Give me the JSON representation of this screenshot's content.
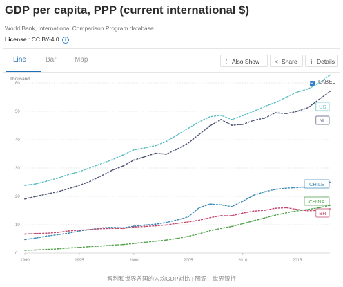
{
  "header": {
    "title": "GDP per capita, PPP (current international $)",
    "source": "World Bank, International Comparison Program database.",
    "license_label": "License",
    "license_sep": " : ",
    "license_value": "CC BY-4.0",
    "info_glyph": "i"
  },
  "tabs": [
    {
      "label": "Line",
      "active": true
    },
    {
      "label": "Bar",
      "active": false
    },
    {
      "label": "Map",
      "active": false
    }
  ],
  "toolbar": {
    "also_show": {
      "label": "Also Show",
      "icon": "kebab-icon",
      "glyph": "⋮"
    },
    "share": {
      "label": "Share",
      "icon": "share-icon",
      "glyph": "<"
    },
    "details": {
      "label": "Details",
      "icon": "info-icon",
      "glyph": "i"
    }
  },
  "label_toggle": {
    "label": "LABEL",
    "checked": true,
    "glyph": "✓"
  },
  "caption": "智利和世界各国的人均GDP对比 | 图源：世界银行",
  "chart_data": {
    "type": "line",
    "unit_label": "Thousand",
    "xlim": [
      1990,
      2018
    ],
    "ylim": [
      0,
      60
    ],
    "x_ticks": [
      1990,
      1995,
      2000,
      2005,
      2010,
      2015
    ],
    "y_ticks": [
      0,
      10,
      20,
      30,
      40,
      50,
      60
    ],
    "grid": "horizontal-dotted",
    "x": [
      1990,
      1991,
      1992,
      1993,
      1994,
      1995,
      1996,
      1997,
      1998,
      1999,
      2000,
      2001,
      2002,
      2003,
      2004,
      2005,
      2006,
      2007,
      2008,
      2009,
      2010,
      2011,
      2012,
      2013,
      2014,
      2015,
      2016,
      2017,
      2018
    ],
    "series": [
      {
        "name": "US",
        "color": "#58bdc2",
        "values": [
          23.9,
          24.4,
          25.4,
          26.4,
          27.7,
          28.7,
          30.1,
          31.5,
          32.9,
          34.6,
          36.4,
          37.1,
          37.9,
          39.4,
          41.7,
          44.0,
          46.3,
          48.1,
          48.6,
          47.1,
          48.5,
          50.0,
          51.7,
          53.1,
          55.0,
          56.8,
          57.9,
          59.9,
          62.8
        ]
      },
      {
        "name": "NL",
        "color": "#4a5275",
        "values": [
          19.1,
          20.0,
          20.8,
          21.6,
          22.7,
          23.9,
          25.3,
          27.2,
          29.2,
          30.7,
          32.8,
          34.0,
          35.2,
          34.9,
          36.7,
          38.8,
          41.9,
          44.9,
          47.1,
          45.1,
          45.4,
          46.8,
          47.6,
          49.5,
          49.2,
          50.0,
          51.3,
          54.2,
          57.0
        ]
      },
      {
        "name": "CHILE",
        "color": "#3b8ab5",
        "values": [
          4.8,
          5.3,
          6.0,
          6.5,
          7.0,
          7.8,
          8.3,
          8.9,
          9.1,
          8.9,
          9.5,
          9.9,
          10.2,
          10.8,
          11.7,
          12.8,
          16.0,
          17.3,
          17.0,
          16.4,
          18.3,
          20.4,
          21.6,
          22.5,
          22.9,
          23.1,
          23.4,
          24.1,
          25.0
        ]
      },
      {
        "name": "CHINA",
        "color": "#4fa048",
        "values": [
          1.0,
          1.1,
          1.3,
          1.5,
          1.8,
          2.0,
          2.3,
          2.5,
          2.8,
          3.0,
          3.4,
          3.8,
          4.2,
          4.6,
          5.2,
          5.9,
          6.8,
          7.9,
          8.7,
          9.4,
          10.4,
          11.4,
          12.4,
          13.4,
          14.2,
          14.9,
          15.4,
          16.0,
          16.8
        ]
      },
      {
        "name": "BR",
        "color": "#c2476b",
        "values": [
          6.7,
          6.9,
          7.0,
          7.3,
          7.8,
          8.1,
          8.3,
          8.6,
          8.7,
          8.7,
          9.2,
          9.4,
          9.6,
          9.9,
          10.5,
          11.0,
          11.6,
          12.5,
          13.2,
          13.2,
          14.1,
          14.8,
          15.1,
          15.8,
          16.0,
          15.4,
          14.9,
          15.1,
          15.6
        ]
      }
    ]
  }
}
